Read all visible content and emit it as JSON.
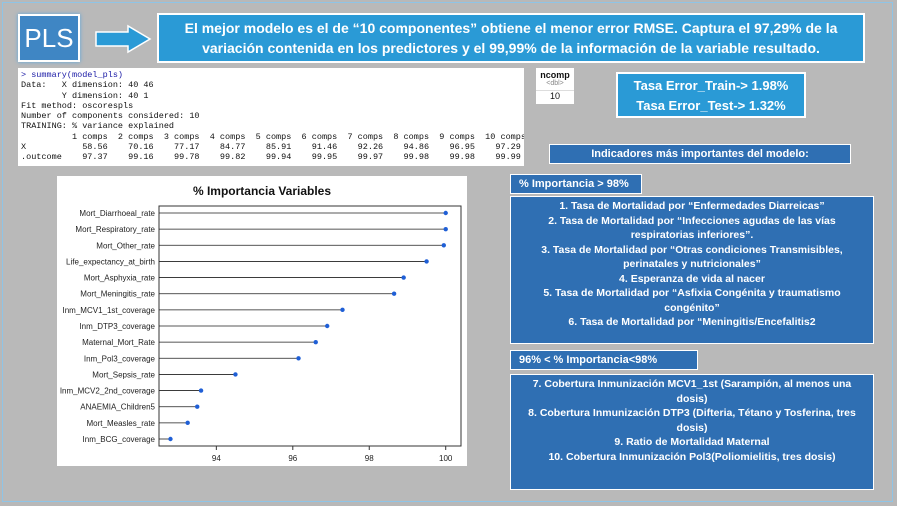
{
  "header": {
    "logo": "PLS",
    "summary": "El mejor modelo es el de “10 componentes” obtiene el menor error RMSE. Captura el 97,29% de la variación contenida en los predictores y el 99,99% de la información de la variable resultado."
  },
  "console": {
    "lines": [
      "> summary(model_pls)",
      "Data:   X dimension: 40 46",
      "        Y dimension: 40 1",
      "Fit method: oscorespls",
      "Number of components considered: 10",
      "TRAINING: % variance explained",
      "          1 comps  2 comps  3 comps  4 comps  5 comps  6 comps  7 comps  8 comps  9 comps  10 comps",
      "X           58.56    70.16    77.17    84.77    85.91    91.46    92.26    94.86    96.95    97.29",
      ".outcome    97.37    99.16    99.78    99.82    99.94    99.95    99.97    99.98    99.98    99.99"
    ]
  },
  "ncomp": {
    "header": "ncomp",
    "type": "<dbl>",
    "value": "10"
  },
  "errors": {
    "train": "Tasa Error_Train-> 1.98%",
    "test": "Tasa Error_Test-> 1.32%"
  },
  "indicators_title": "Indicadores más importantes del  modelo:",
  "group1": {
    "label": "% Importancia > 98%",
    "items": [
      "1.      Tasa de Mortalidad por “Enfermedades Diarreicas”",
      "2.      Tasa de Mortalidad por “Infecciones agudas de las vías respiratorias inferiores”.",
      "3.      Tasa de Mortalidad por “Otras condiciones Transmisibles, perinatales y nutricionales”",
      "4.      Esperanza de vida al nacer",
      "5.      Tasa de Mortalidad por “Asfixia Congénita y traumatismo congénito”",
      "6.      Tasa de Mortalidad por “Meningitis/Encefalitis2"
    ]
  },
  "group2": {
    "label": "96% < % Importancia<98%",
    "items": [
      "7.            Cobertura  Inmunización MCV1_1st (Sarampión, al menos una dosis)",
      "8.            Cobertura  Inmunización DTP3 (Difteria, Tétano y Tosferina, tres dosis)",
      "9.            Ratio de Mortalidad Maternal",
      "10.           Cobertura Inmunización Pol3(Poliomielitis, tres dosis)"
    ]
  },
  "chart_data": {
    "type": "scatter",
    "title": "% Importancia Variables",
    "categories": [
      "Mort_Diarrhoeal_rate",
      "Mort_Respiratory_rate",
      "Mort_Other_rate",
      "Life_expectancy_at_birth",
      "Mort_Asphyxia_rate",
      "Mort_Meningitis_rate",
      "Inm_MCV1_1st_coverage",
      "Inm_DTP3_coverage",
      "Maternal_Mort_Rate",
      "Inm_Pol3_coverage",
      "Mort_Sepsis_rate",
      "Inm_MCV2_2nd_coverage",
      "ANAEMIA_Children5",
      "Mort_Measles_rate",
      "Inm_BCG_coverage"
    ],
    "values": [
      100,
      100,
      99.95,
      99.5,
      98.9,
      98.65,
      97.3,
      96.9,
      96.6,
      96.15,
      94.5,
      93.6,
      93.5,
      93.25,
      92.8
    ],
    "xlim": [
      92.5,
      100.4
    ],
    "xticks": [
      94,
      96,
      98,
      100
    ],
    "color": "#1f5fd6"
  }
}
